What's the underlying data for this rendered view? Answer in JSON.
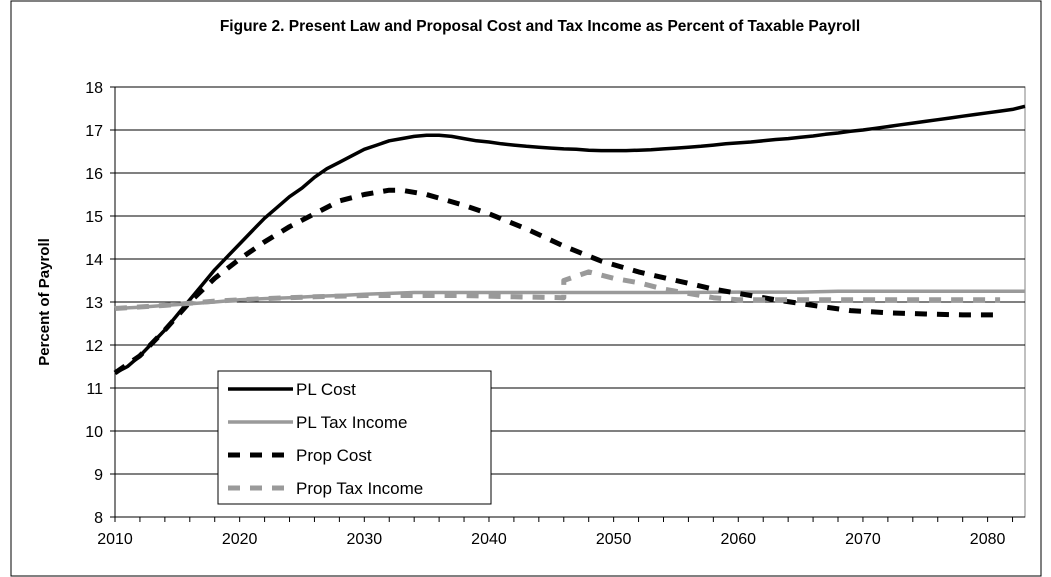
{
  "chart_data": {
    "type": "line",
    "title": "Figure 2. Present Law and Proposal Cost and Tax Income as Percent of Taxable Payroll",
    "xlabel": "",
    "ylabel": "Percent of Payroll",
    "xlim": [
      2010,
      2083
    ],
    "ylim": [
      8,
      18
    ],
    "x_ticks": [
      2010,
      2020,
      2030,
      2040,
      2050,
      2060,
      2070,
      2080
    ],
    "y_ticks": [
      8,
      9,
      10,
      11,
      12,
      13,
      14,
      15,
      16,
      17,
      18
    ],
    "grid": "horizontal",
    "legend_position": "bottom-left",
    "series": [
      {
        "name": "PL Cost",
        "color": "#000000",
        "style": "solid",
        "x": [
          2010,
          2011,
          2012,
          2013,
          2014,
          2015,
          2016,
          2017,
          2018,
          2019,
          2020,
          2021,
          2022,
          2023,
          2024,
          2025,
          2026,
          2027,
          2028,
          2029,
          2030,
          2031,
          2032,
          2033,
          2034,
          2035,
          2036,
          2037,
          2038,
          2039,
          2040,
          2041,
          2042,
          2043,
          2044,
          2045,
          2046,
          2047,
          2048,
          2049,
          2050,
          2051,
          2052,
          2053,
          2054,
          2055,
          2056,
          2057,
          2058,
          2059,
          2060,
          2061,
          2062,
          2063,
          2064,
          2065,
          2066,
          2067,
          2068,
          2069,
          2070,
          2071,
          2072,
          2073,
          2074,
          2075,
          2076,
          2077,
          2078,
          2079,
          2080,
          2081,
          2082,
          2083
        ],
        "values": [
          11.35,
          11.5,
          11.75,
          12.05,
          12.35,
          12.7,
          13.05,
          13.4,
          13.75,
          14.05,
          14.35,
          14.65,
          14.95,
          15.2,
          15.45,
          15.65,
          15.9,
          16.1,
          16.25,
          16.4,
          16.55,
          16.65,
          16.75,
          16.8,
          16.85,
          16.88,
          16.88,
          16.85,
          16.8,
          16.75,
          16.72,
          16.68,
          16.65,
          16.62,
          16.6,
          16.58,
          16.56,
          16.55,
          16.53,
          16.52,
          16.52,
          16.52,
          16.53,
          16.54,
          16.56,
          16.58,
          16.6,
          16.62,
          16.65,
          16.68,
          16.7,
          16.72,
          16.75,
          16.78,
          16.8,
          16.83,
          16.86,
          16.9,
          16.93,
          16.97,
          17.0,
          17.04,
          17.08,
          17.12,
          17.16,
          17.2,
          17.24,
          17.28,
          17.32,
          17.36,
          17.4,
          17.44,
          17.48,
          17.55
        ]
      },
      {
        "name": "PL Tax Income",
        "color": "#9a9a9a",
        "style": "solid",
        "x": [
          2010,
          2012,
          2014,
          2016,
          2018,
          2020,
          2022,
          2024,
          2026,
          2028,
          2030,
          2032,
          2034,
          2036,
          2040,
          2045,
          2050,
          2055,
          2060,
          2065,
          2068,
          2070,
          2075,
          2080,
          2083
        ],
        "values": [
          12.85,
          12.88,
          12.92,
          12.96,
          13.0,
          13.05,
          13.08,
          13.1,
          13.13,
          13.15,
          13.18,
          13.2,
          13.22,
          13.22,
          13.22,
          13.22,
          13.22,
          13.22,
          13.23,
          13.23,
          13.25,
          13.25,
          13.25,
          13.25,
          13.25
        ]
      },
      {
        "name": "Prop Cost",
        "color": "#000000",
        "style": "dashed",
        "x": [
          2010,
          2012,
          2014,
          2016,
          2018,
          2020,
          2022,
          2024,
          2026,
          2028,
          2030,
          2032,
          2033,
          2035,
          2038,
          2040,
          2043,
          2046,
          2049,
          2052,
          2055,
          2058,
          2060,
          2063,
          2066,
          2069,
          2072,
          2075,
          2078,
          2081
        ],
        "values": [
          11.35,
          11.75,
          12.35,
          13.0,
          13.55,
          14.0,
          14.4,
          14.75,
          15.05,
          15.35,
          15.5,
          15.6,
          15.6,
          15.5,
          15.25,
          15.05,
          14.7,
          14.3,
          13.95,
          13.7,
          13.5,
          13.3,
          13.2,
          13.05,
          12.92,
          12.8,
          12.75,
          12.72,
          12.7,
          12.7
        ]
      },
      {
        "name": "Prop Tax Income",
        "color": "#9a9a9a",
        "style": "dashed",
        "x": [
          2010,
          2014,
          2018,
          2022,
          2026,
          2030,
          2034,
          2038,
          2042,
          2046,
          2046,
          2048,
          2050,
          2052,
          2054,
          2056,
          2058,
          2060,
          2065,
          2070,
          2075,
          2081
        ],
        "values": [
          12.85,
          12.92,
          13.02,
          13.08,
          13.12,
          13.15,
          13.15,
          13.15,
          13.12,
          13.1,
          13.5,
          13.7,
          13.55,
          13.45,
          13.3,
          13.2,
          13.1,
          13.05,
          13.05,
          13.05,
          13.05,
          13.05
        ]
      }
    ]
  }
}
